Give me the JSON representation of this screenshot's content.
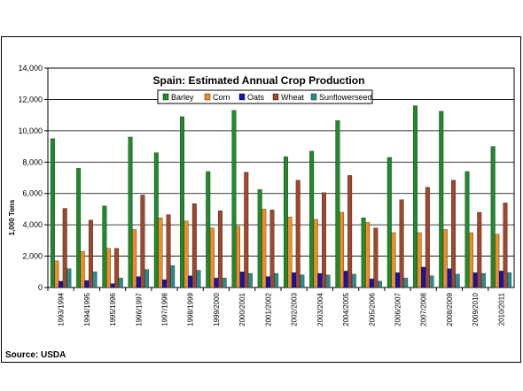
{
  "source": "Source: USDA",
  "chart_data": {
    "type": "bar",
    "title": "Spain: Estimated Annual Crop Production",
    "ylabel": "1,000 Tons",
    "xlabel": "",
    "ylim": [
      0,
      14000
    ],
    "yticks": [
      "0",
      "2,000",
      "4,000",
      "6,000",
      "8,000",
      "10,000",
      "12,000",
      "14,000"
    ],
    "grid": "horizontal",
    "legend_position": "top",
    "categories": [
      "1993/1994",
      "1994/1995",
      "1995/1996",
      "1996/1997",
      "1997/1998",
      "1998/1999",
      "1999/2000",
      "2000/2001",
      "2001/2002",
      "2002/2003",
      "2003/2004",
      "2004/2005",
      "2005/2006",
      "2006/2007",
      "2007/2008",
      "2008/2009",
      "2009/2010",
      "2010/2011"
    ],
    "series": [
      {
        "name": "Barley",
        "color": "#1f8a2a",
        "values": [
          9500,
          7600,
          5200,
          9600,
          8600,
          10900,
          7400,
          11300,
          6250,
          8350,
          8700,
          10650,
          4450,
          8300,
          11600,
          11250,
          7400,
          9000
        ]
      },
      {
        "name": "Corn",
        "color": "#f08c28",
        "values": [
          1700,
          2300,
          2500,
          3700,
          4450,
          4250,
          3800,
          3900,
          5000,
          4500,
          4350,
          4800,
          4150,
          3500,
          3500,
          3700,
          3500,
          3400
        ]
      },
      {
        "name": "Oats",
        "color": "#1414b4",
        "values": [
          400,
          450,
          250,
          700,
          500,
          750,
          600,
          1000,
          700,
          950,
          900,
          1050,
          550,
          950,
          1300,
          1200,
          950,
          1050
        ]
      },
      {
        "name": "Wheat",
        "color": "#a0462a",
        "values": [
          5050,
          4300,
          2500,
          5900,
          4650,
          5350,
          4900,
          7350,
          4950,
          6850,
          6050,
          7150,
          3800,
          5600,
          6400,
          6850,
          4800,
          5400
        ]
      },
      {
        "name": "Sunflowerseed",
        "color": "#2a8c8c",
        "values": [
          1200,
          1000,
          600,
          1150,
          1400,
          1100,
          600,
          900,
          900,
          800,
          800,
          850,
          400,
          600,
          750,
          850,
          900,
          950
        ]
      }
    ]
  }
}
